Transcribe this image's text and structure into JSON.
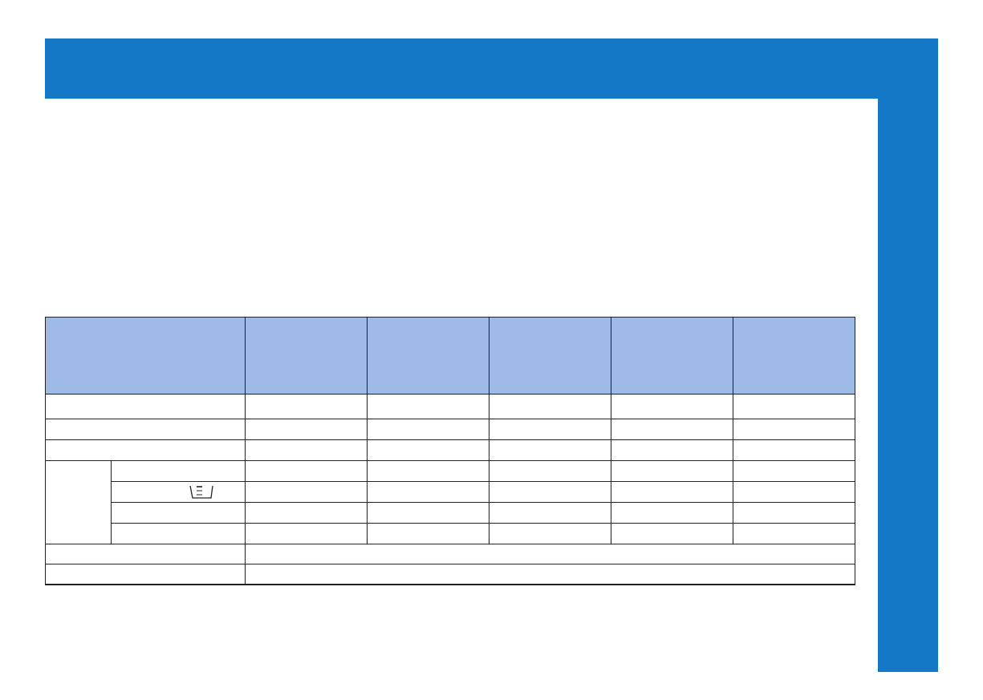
{
  "colors": {
    "accent": "#1578c6",
    "header_fill": "#9dbbe6",
    "border": "#222222"
  },
  "table": {
    "icon": "detergent-container-icon"
  }
}
